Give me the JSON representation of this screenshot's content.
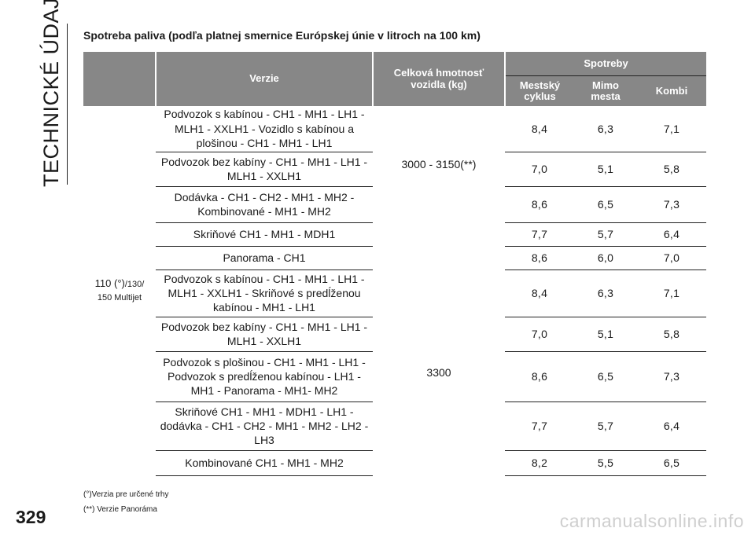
{
  "side": {
    "title": "TECHNICKÉ ÚDAJE",
    "page_number": "329"
  },
  "heading": "Spotreba paliva (podľa platnej smernice Európskej únie v litroch na 100 km)",
  "table": {
    "headers": {
      "version": "Verzie",
      "mass": "Celková hmotnosť vozidla (kg)",
      "group": "Spotreby",
      "urban": "Mestský cyklus",
      "extra_urban": "Mimo mesta",
      "combined": "Kombi"
    },
    "engine": {
      "main": "110 (°)",
      "small_1": "/130/",
      "small_2": "150 Multijet"
    },
    "mass_groups": [
      "3000 - 3150(**)",
      "3300"
    ],
    "rows": [
      {
        "version": "Podvozok s kabínou - CH1 - MH1 - LH1 - MLH1 - XXLH1 - Vozidlo s kabínou a plošinou - CH1 - MH1 - LH1",
        "urban": "8,4",
        "extra": "6,3",
        "combined": "7,1"
      },
      {
        "version": "Podvozok bez kabíny - CH1 - MH1 - LH1 - MLH1 - XXLH1",
        "urban": "7,0",
        "extra": "5,1",
        "combined": "5,8"
      },
      {
        "version": "Dodávka - CH1 - CH2 - MH1 - MH2 - Kombinované - MH1 - MH2",
        "urban": "8,6",
        "extra": "6,5",
        "combined": "7,3"
      },
      {
        "version": "Skriňové CH1 - MH1 - MDH1",
        "urban": "7,7",
        "extra": "5,7",
        "combined": "6,4"
      },
      {
        "version": "Panorama - CH1",
        "urban": "8,6",
        "extra": "6,0",
        "combined": "7,0"
      },
      {
        "version": "Podvozok s kabínou - CH1 - MH1 - LH1 - MLH1 - XXLH1 - Skriňové s predĺženou kabínou - MH1 - LH1",
        "urban": "8,4",
        "extra": "6,3",
        "combined": "7,1"
      },
      {
        "version": "Podvozok bez kabíny - CH1 - MH1 - LH1 - MLH1 - XXLH1",
        "urban": "7,0",
        "extra": "5,1",
        "combined": "5,8"
      },
      {
        "version": "Podvozok s plošinou - CH1 - MH1 - LH1 - Podvozok s predĺženou kabínou - LH1 - MH1 - Panorama - MH1- MH2",
        "urban": "8,6",
        "extra": "6,5",
        "combined": "7,3"
      },
      {
        "version": "Skriňové CH1 - MH1 - MDH1 - LH1 - dodávka - CH1 - CH2 - MH1 - MH2 - LH2 - LH3",
        "urban": "7,7",
        "extra": "5,7",
        "combined": "6,4"
      },
      {
        "version": "Kombinované CH1 - MH1 - MH2",
        "urban": "8,2",
        "extra": "5,5",
        "combined": "6,5"
      }
    ]
  },
  "footnotes": [
    "(°)Verzia pre určené trhy",
    "(**) Verzie Panoráma"
  ],
  "watermark": "carmanualsonline.info"
}
